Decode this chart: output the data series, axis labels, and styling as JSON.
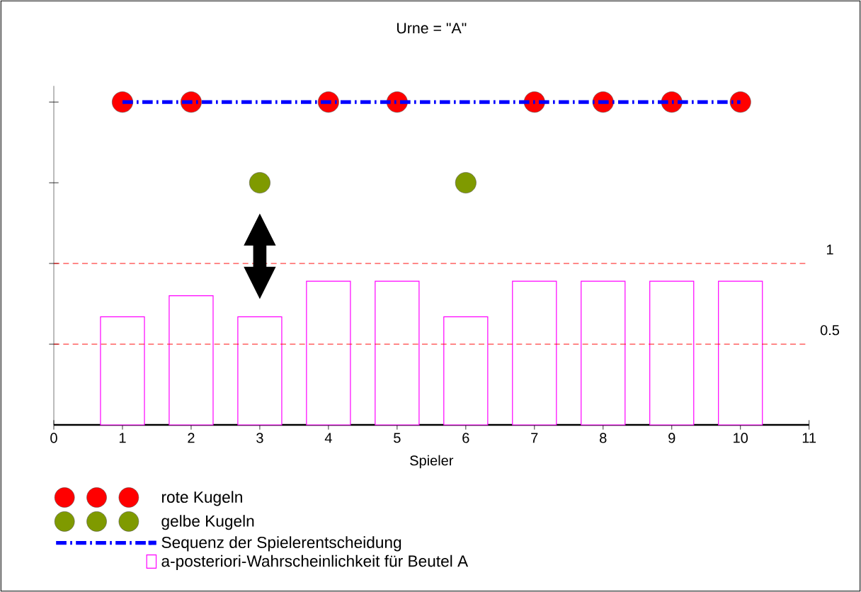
{
  "chart_data": {
    "type": "scatter",
    "title": "Urne = \"A\"",
    "xlabel": "Spieler",
    "xlim": [
      0,
      11
    ],
    "xticks": [
      0,
      1,
      2,
      3,
      4,
      5,
      6,
      7,
      8,
      9,
      10,
      11
    ],
    "ylim": [
      0,
      2.1
    ],
    "yticks": [
      {
        "value": 0.5,
        "label": null
      },
      {
        "value": 1,
        "label": null
      },
      {
        "value": 1.5,
        "label": null
      },
      {
        "value": 2,
        "label": null
      }
    ],
    "tick_labels": "x",
    "legend": "bottom",
    "series": [
      {
        "name": "rote Kugeln",
        "color": "#ff0000",
        "marker": "circle",
        "x": [
          1,
          2,
          4,
          5,
          7,
          8,
          9,
          10
        ],
        "values": [
          2,
          2,
          2,
          2,
          2,
          2,
          2,
          2
        ]
      },
      {
        "name": "gelbe Kugeln",
        "color": "#7f9a00",
        "marker": "circle",
        "x": [
          3,
          6
        ],
        "values": [
          1.5,
          1.5
        ]
      },
      {
        "name": "Sequenz der Spielerentscheidung",
        "type": "line",
        "color": "#0000ff",
        "line_style": "dashdot",
        "marker": "none",
        "x": [
          1,
          2,
          3,
          4,
          5,
          6,
          7,
          8,
          9,
          10
        ],
        "values": [
          2,
          2,
          2,
          2,
          2,
          2,
          2,
          2,
          2,
          2
        ]
      },
      {
        "name": "a-posteriori-Wahrscheinlichkeit für Beutel A",
        "type": "bar",
        "color": "#ff00ff",
        "x": [
          1,
          2,
          3,
          4,
          5,
          6,
          7,
          8,
          9,
          10
        ],
        "values": [
          0.67,
          0.8,
          0.67,
          0.89,
          0.89,
          0.67,
          0.89,
          0.89,
          0.89,
          0.89
        ]
      }
    ],
    "ref_lines": [
      {
        "axis": "y",
        "value": 1,
        "label": "1",
        "color": "#ff0000",
        "line_style": "dashed"
      },
      {
        "axis": "y",
        "value": 0.5,
        "label": "0.5",
        "color": "#ff0000",
        "line_style": "dashed"
      }
    ]
  }
}
